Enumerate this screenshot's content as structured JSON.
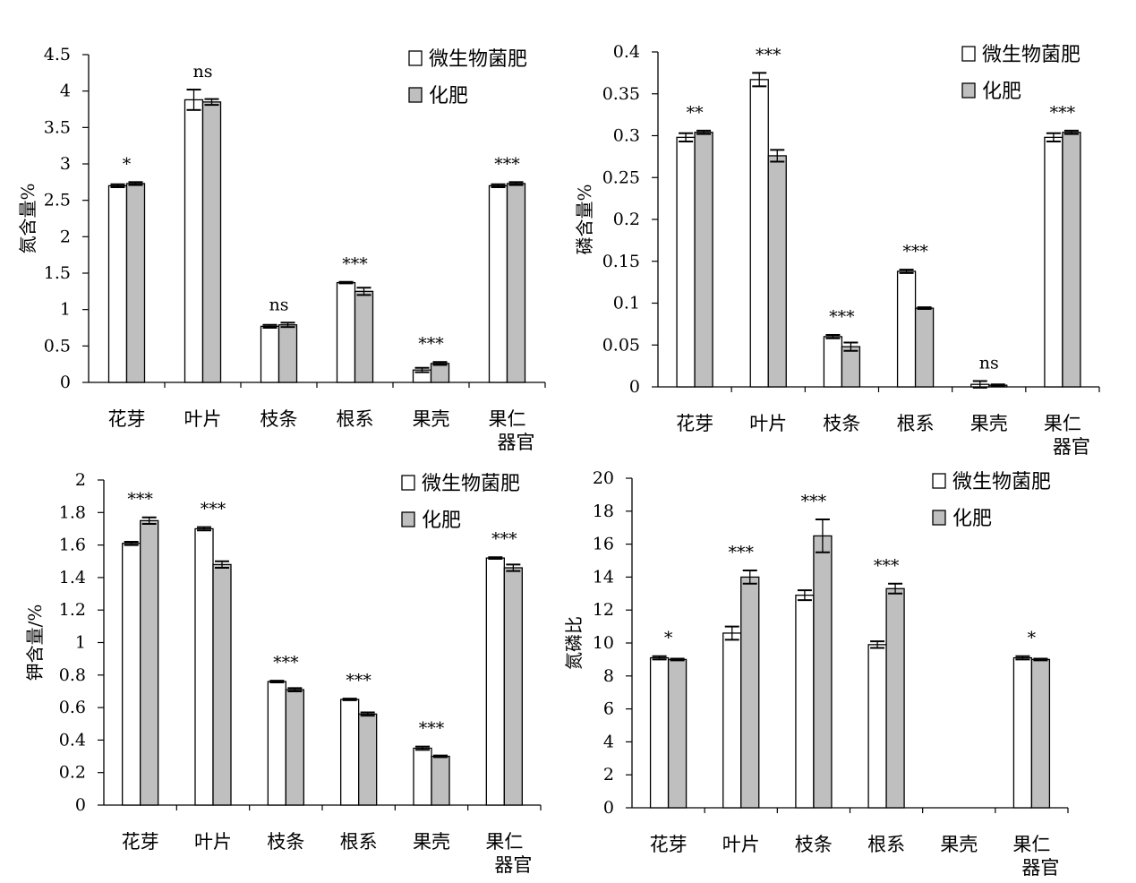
{
  "colors": {
    "biofertilizer": "#ffffff",
    "fertilizer": "#bfbfbf",
    "stroke": "#000000"
  },
  "chart_data": [
    {
      "type": "bar",
      "ylabel": "氮含量%",
      "ylim": [
        0,
        4.5
      ],
      "yticks": [
        "0",
        "0.5",
        "1",
        "1.5",
        "2",
        "2.5",
        "3",
        "3.5",
        "4",
        "4.5"
      ],
      "categories": [
        "花芽",
        "叶片",
        "枝条",
        "根系",
        "果壳",
        "果仁\n器官"
      ],
      "legend": [
        "微生物菌肥",
        "化肥"
      ],
      "legend_position": "top-right",
      "series": [
        {
          "name": "微生物菌肥",
          "values": [
            2.7,
            3.88,
            0.77,
            1.37,
            0.17,
            2.7
          ],
          "errors": [
            0.02,
            0.14,
            0.02,
            0.01,
            0.03,
            0.02
          ]
        },
        {
          "name": "化肥",
          "values": [
            2.73,
            3.85,
            0.79,
            1.25,
            0.26,
            2.73
          ],
          "errors": [
            0.02,
            0.04,
            0.03,
            0.05,
            0.02,
            0.02
          ]
        }
      ],
      "significance": [
        "*",
        "ns",
        "ns",
        "***",
        "***",
        "***"
      ]
    },
    {
      "type": "bar",
      "ylabel": "磷含量%",
      "ylim": [
        0,
        0.4
      ],
      "yticks": [
        "0",
        "0.05",
        "0.1",
        "0.15",
        "0.2",
        "0.25",
        "0.3",
        "0.35",
        "0.4"
      ],
      "categories": [
        "花芽",
        "叶片",
        "枝条",
        "根系",
        "果壳",
        "果仁\n器官"
      ],
      "legend": [
        "微生物菌肥",
        "化肥"
      ],
      "legend_position": "top-right",
      "series": [
        {
          "name": "微生物菌肥",
          "values": [
            0.298,
            0.367,
            0.06,
            0.138,
            0.003,
            0.298
          ],
          "errors": [
            0.005,
            0.008,
            0.002,
            0.002,
            0.004,
            0.005
          ]
        },
        {
          "name": "化肥",
          "values": [
            0.304,
            0.276,
            0.048,
            0.094,
            0.002,
            0.304
          ],
          "errors": [
            0.002,
            0.007,
            0.005,
            0.001,
            0.001,
            0.002
          ]
        }
      ],
      "significance": [
        "**",
        "***",
        "***",
        "***",
        "ns",
        "***"
      ]
    },
    {
      "type": "bar",
      "ylabel": "钾含量/%",
      "ylim": [
        0,
        2
      ],
      "yticks": [
        "0",
        "0.2",
        "0.4",
        "0.6",
        "0.8",
        "1",
        "1.2",
        "1.4",
        "1.6",
        "1.8",
        "2"
      ],
      "categories": [
        "花芽",
        "叶片",
        "枝条",
        "根系",
        "果壳",
        "果仁\n器官"
      ],
      "legend": [
        "微生物菌肥",
        "化肥"
      ],
      "legend_position": "top-right",
      "series": [
        {
          "name": "微生物菌肥",
          "values": [
            1.61,
            1.7,
            0.76,
            0.65,
            0.35,
            1.52
          ],
          "errors": [
            0.01,
            0.01,
            0.005,
            0.005,
            0.01,
            0.005
          ]
        },
        {
          "name": "化肥",
          "values": [
            1.75,
            1.48,
            0.71,
            0.56,
            0.3,
            1.46
          ],
          "errors": [
            0.02,
            0.02,
            0.01,
            0.01,
            0.005,
            0.02
          ]
        }
      ],
      "significance": [
        "***",
        "***",
        "***",
        "***",
        "***",
        "***"
      ]
    },
    {
      "type": "bar",
      "ylabel": "氮磷比",
      "ylim": [
        0,
        20
      ],
      "yticks": [
        "0",
        "2",
        "4",
        "6",
        "8",
        "10",
        "12",
        "14",
        "16",
        "18",
        "20"
      ],
      "categories": [
        "花芽",
        "叶片",
        "枝条",
        "根系",
        "果壳",
        "果仁\n器官"
      ],
      "legend": [
        "微生物菌肥",
        "化肥"
      ],
      "legend_position": "top-right",
      "series": [
        {
          "name": "微生物菌肥",
          "values": [
            9.1,
            10.6,
            12.9,
            9.9,
            null,
            9.1
          ],
          "errors": [
            0.1,
            0.4,
            0.3,
            0.2,
            null,
            0.1
          ]
        },
        {
          "name": "化肥",
          "values": [
            9.0,
            14.0,
            16.5,
            13.3,
            null,
            9.0
          ],
          "errors": [
            0.05,
            0.4,
            1.0,
            0.3,
            null,
            0.05
          ]
        }
      ],
      "significance": [
        "*",
        "***",
        "***",
        "***",
        "",
        "*"
      ]
    }
  ]
}
